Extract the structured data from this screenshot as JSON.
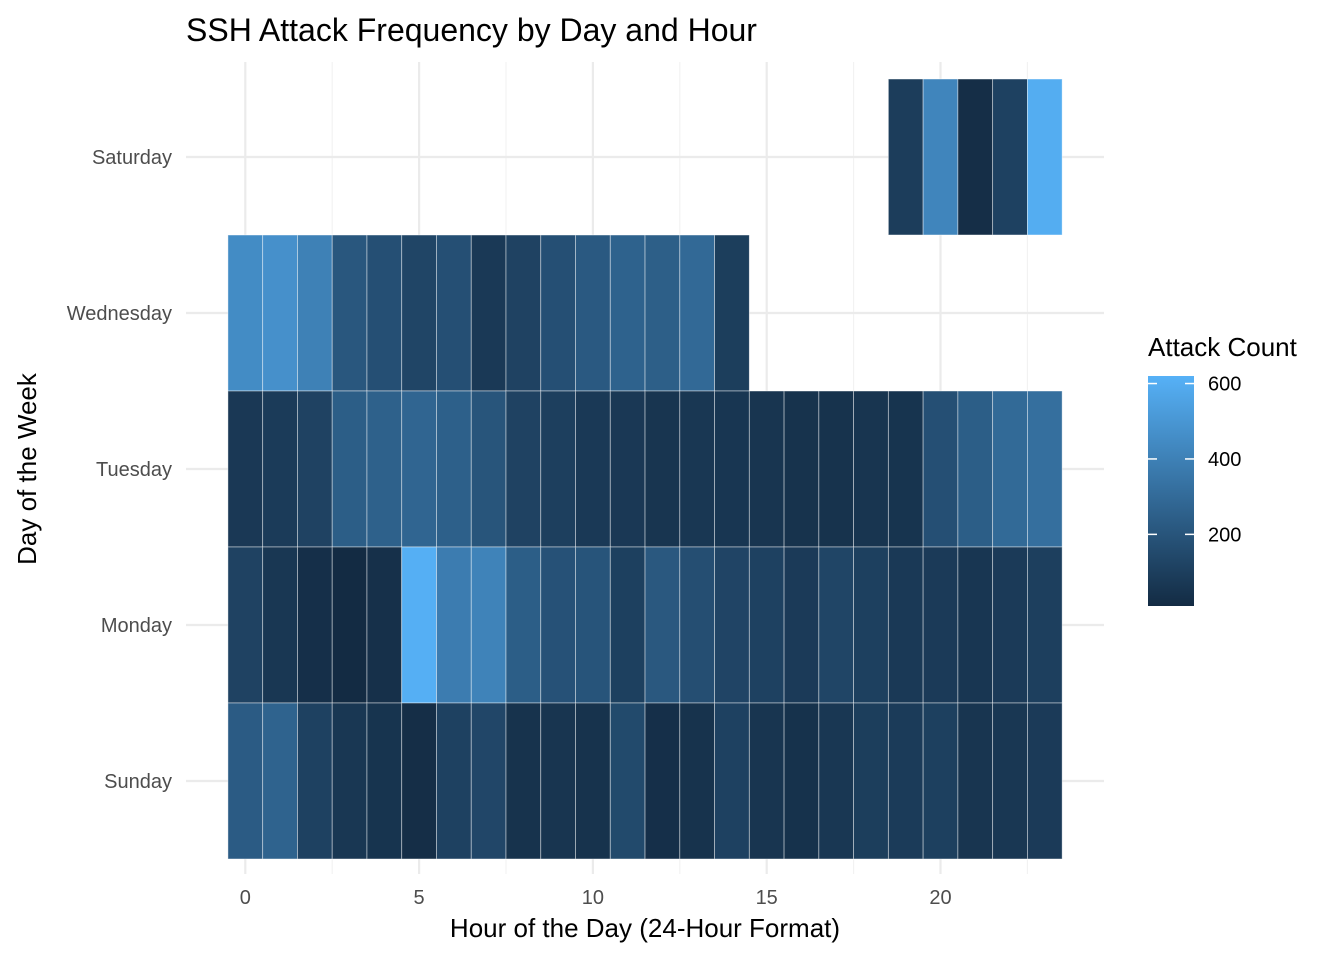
{
  "chart_data": {
    "type": "heatmap",
    "title": "SSH Attack Frequency by Day and Hour",
    "xlabel": "Hour of the Day (24-Hour Format)",
    "ylabel": "Day of the Week",
    "days": [
      "Sunday",
      "Monday",
      "Tuesday",
      "Wednesday",
      "Saturday"
    ],
    "x_ticks": [
      0,
      5,
      10,
      15,
      20
    ],
    "xlim": [
      -0.5,
      23.5
    ],
    "legend": {
      "title": "Attack Count",
      "breaks": [
        200,
        400,
        600
      ],
      "min": 10,
      "max": 620,
      "low_color": "#132B43",
      "high_color": "#56B1F7",
      "placement": "right"
    },
    "grid": true,
    "cells": [
      {
        "day": "Saturday",
        "hour": 19,
        "value": 90
      },
      {
        "day": "Saturday",
        "hour": 20,
        "value": 420
      },
      {
        "day": "Saturday",
        "hour": 21,
        "value": 25
      },
      {
        "day": "Saturday",
        "hour": 22,
        "value": 110
      },
      {
        "day": "Saturday",
        "hour": 23,
        "value": 600
      },
      {
        "day": "Wednesday",
        "hour": 0,
        "value": 450
      },
      {
        "day": "Wednesday",
        "hour": 1,
        "value": 470
      },
      {
        "day": "Wednesday",
        "hour": 2,
        "value": 400
      },
      {
        "day": "Wednesday",
        "hour": 3,
        "value": 210
      },
      {
        "day": "Wednesday",
        "hour": 4,
        "value": 175
      },
      {
        "day": "Wednesday",
        "hour": 5,
        "value": 130
      },
      {
        "day": "Wednesday",
        "hour": 6,
        "value": 175
      },
      {
        "day": "Wednesday",
        "hour": 7,
        "value": 75
      },
      {
        "day": "Wednesday",
        "hour": 8,
        "value": 115
      },
      {
        "day": "Wednesday",
        "hour": 9,
        "value": 175
      },
      {
        "day": "Wednesday",
        "hour": 10,
        "value": 220
      },
      {
        "day": "Wednesday",
        "hour": 11,
        "value": 260
      },
      {
        "day": "Wednesday",
        "hour": 12,
        "value": 245
      },
      {
        "day": "Wednesday",
        "hour": 13,
        "value": 290
      },
      {
        "day": "Wednesday",
        "hour": 14,
        "value": 95
      },
      {
        "day": "Tuesday",
        "hour": 0,
        "value": 70
      },
      {
        "day": "Tuesday",
        "hour": 1,
        "value": 85
      },
      {
        "day": "Tuesday",
        "hour": 2,
        "value": 115
      },
      {
        "day": "Tuesday",
        "hour": 3,
        "value": 240
      },
      {
        "day": "Tuesday",
        "hour": 4,
        "value": 255
      },
      {
        "day": "Tuesday",
        "hour": 5,
        "value": 275
      },
      {
        "day": "Tuesday",
        "hour": 6,
        "value": 250
      },
      {
        "day": "Tuesday",
        "hour": 7,
        "value": 200
      },
      {
        "day": "Tuesday",
        "hour": 8,
        "value": 115
      },
      {
        "day": "Tuesday",
        "hour": 9,
        "value": 100
      },
      {
        "day": "Tuesday",
        "hour": 10,
        "value": 75
      },
      {
        "day": "Tuesday",
        "hour": 11,
        "value": 70
      },
      {
        "day": "Tuesday",
        "hour": 12,
        "value": 55
      },
      {
        "day": "Tuesday",
        "hour": 13,
        "value": 65
      },
      {
        "day": "Tuesday",
        "hour": 14,
        "value": 60
      },
      {
        "day": "Tuesday",
        "hour": 15,
        "value": 55
      },
      {
        "day": "Tuesday",
        "hour": 16,
        "value": 45
      },
      {
        "day": "Tuesday",
        "hour": 17,
        "value": 45
      },
      {
        "day": "Tuesday",
        "hour": 18,
        "value": 55
      },
      {
        "day": "Tuesday",
        "hour": 19,
        "value": 50
      },
      {
        "day": "Tuesday",
        "hour": 20,
        "value": 175
      },
      {
        "day": "Tuesday",
        "hour": 21,
        "value": 240
      },
      {
        "day": "Tuesday",
        "hour": 22,
        "value": 295
      },
      {
        "day": "Tuesday",
        "hour": 23,
        "value": 320
      },
      {
        "day": "Monday",
        "hour": 0,
        "value": 115
      },
      {
        "day": "Monday",
        "hour": 1,
        "value": 65
      },
      {
        "day": "Monday",
        "hour": 2,
        "value": 30
      },
      {
        "day": "Monday",
        "hour": 3,
        "value": 10
      },
      {
        "day": "Monday",
        "hour": 4,
        "value": 35
      },
      {
        "day": "Monday",
        "hour": 5,
        "value": 610
      },
      {
        "day": "Monday",
        "hour": 6,
        "value": 380
      },
      {
        "day": "Monday",
        "hour": 7,
        "value": 410
      },
      {
        "day": "Monday",
        "hour": 8,
        "value": 240
      },
      {
        "day": "Monday",
        "hour": 9,
        "value": 185
      },
      {
        "day": "Monday",
        "hour": 10,
        "value": 195
      },
      {
        "day": "Monday",
        "hour": 11,
        "value": 105
      },
      {
        "day": "Monday",
        "hour": 12,
        "value": 215
      },
      {
        "day": "Monday",
        "hour": 13,
        "value": 170
      },
      {
        "day": "Monday",
        "hour": 14,
        "value": 125
      },
      {
        "day": "Monday",
        "hour": 15,
        "value": 110
      },
      {
        "day": "Monday",
        "hour": 16,
        "value": 80
      },
      {
        "day": "Monday",
        "hour": 17,
        "value": 130
      },
      {
        "day": "Monday",
        "hour": 18,
        "value": 105
      },
      {
        "day": "Monday",
        "hour": 19,
        "value": 75
      },
      {
        "day": "Monday",
        "hour": 20,
        "value": 80
      },
      {
        "day": "Monday",
        "hour": 21,
        "value": 60
      },
      {
        "day": "Monday",
        "hour": 22,
        "value": 80
      },
      {
        "day": "Monday",
        "hour": 23,
        "value": 100
      },
      {
        "day": "Sunday",
        "hour": 0,
        "value": 230
      },
      {
        "day": "Sunday",
        "hour": 1,
        "value": 265
      },
      {
        "day": "Sunday",
        "hour": 2,
        "value": 110
      },
      {
        "day": "Sunday",
        "hour": 3,
        "value": 65
      },
      {
        "day": "Sunday",
        "hour": 4,
        "value": 50
      },
      {
        "day": "Sunday",
        "hour": 5,
        "value": 25
      },
      {
        "day": "Sunday",
        "hour": 6,
        "value": 110
      },
      {
        "day": "Sunday",
        "hour": 7,
        "value": 135
      },
      {
        "day": "Sunday",
        "hour": 8,
        "value": 45
      },
      {
        "day": "Sunday",
        "hour": 9,
        "value": 55
      },
      {
        "day": "Sunday",
        "hour": 10,
        "value": 45
      },
      {
        "day": "Sunday",
        "hour": 11,
        "value": 150
      },
      {
        "day": "Sunday",
        "hour": 12,
        "value": 30
      },
      {
        "day": "Sunday",
        "hour": 13,
        "value": 45
      },
      {
        "day": "Sunday",
        "hour": 14,
        "value": 110
      },
      {
        "day": "Sunday",
        "hour": 15,
        "value": 55
      },
      {
        "day": "Sunday",
        "hour": 16,
        "value": 40
      },
      {
        "day": "Sunday",
        "hour": 17,
        "value": 65
      },
      {
        "day": "Sunday",
        "hour": 18,
        "value": 95
      },
      {
        "day": "Sunday",
        "hour": 19,
        "value": 85
      },
      {
        "day": "Sunday",
        "hour": 20,
        "value": 105
      },
      {
        "day": "Sunday",
        "hour": 21,
        "value": 55
      },
      {
        "day": "Sunday",
        "hour": 22,
        "value": 65
      },
      {
        "day": "Sunday",
        "hour": 23,
        "value": 80
      }
    ]
  }
}
